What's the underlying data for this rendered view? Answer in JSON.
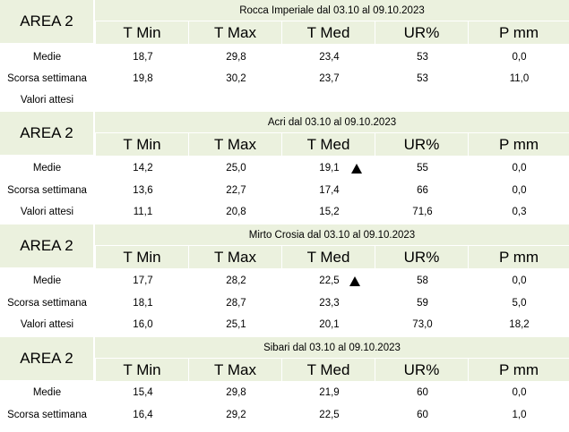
{
  "headers": {
    "area": "AREA 2",
    "cols": [
      "T Min",
      "T Max",
      "T Med",
      "UR%",
      "P mm"
    ]
  },
  "blocks": [
    {
      "title": "Rocca Imperiale  dal 03.10 al 09.10.2023",
      "rows": [
        {
          "label": "Medie",
          "values": [
            "18,7",
            "29,8",
            "23,4",
            "53",
            "0,0"
          ]
        },
        {
          "label": "Scorsa settimana",
          "values": [
            "19,8",
            "30,2",
            "23,7",
            "53",
            "11,0"
          ]
        },
        {
          "label": "Valori attesi",
          "values": [
            "",
            "",
            "",
            "",
            ""
          ]
        }
      ]
    },
    {
      "title": "Acri dal 03.10 al 09.10.2023",
      "rows": [
        {
          "label": "Medie",
          "values": [
            "14,2",
            "25,0",
            "19,1",
            "55",
            "0,0"
          ]
        },
        {
          "label": "Scorsa settimana",
          "values": [
            "13,6",
            "22,7",
            "17,4",
            "66",
            "0,0"
          ]
        },
        {
          "label": "Valori attesi",
          "values": [
            "11,1",
            "20,8",
            "15,2",
            "71,6",
            "0,3"
          ]
        }
      ]
    },
    {
      "title": "Mirto Crosia dal 03.10 al 09.10.2023",
      "rows": [
        {
          "label": "Medie",
          "values": [
            "17,7",
            "28,2",
            "22,5",
            "58",
            "0,0"
          ]
        },
        {
          "label": "Scorsa settimana",
          "values": [
            "18,1",
            "28,7",
            "23,3",
            "59",
            "5,0"
          ]
        },
        {
          "label": "Valori attesi",
          "values": [
            "16,0",
            "25,1",
            "20,1",
            "73,0",
            "18,2"
          ]
        }
      ]
    },
    {
      "title": "Sibari dal 03.10 al 09.10.2023",
      "rows": [
        {
          "label": "Medie",
          "values": [
            "15,4",
            "29,8",
            "21,9",
            "60",
            "0,0"
          ]
        },
        {
          "label": "Scorsa settimana",
          "values": [
            "16,4",
            "29,2",
            "22,5",
            "60",
            "1,0"
          ]
        }
      ]
    }
  ],
  "trend_icons": [
    "up-triangle-icon",
    "up-triangle-icon"
  ]
}
